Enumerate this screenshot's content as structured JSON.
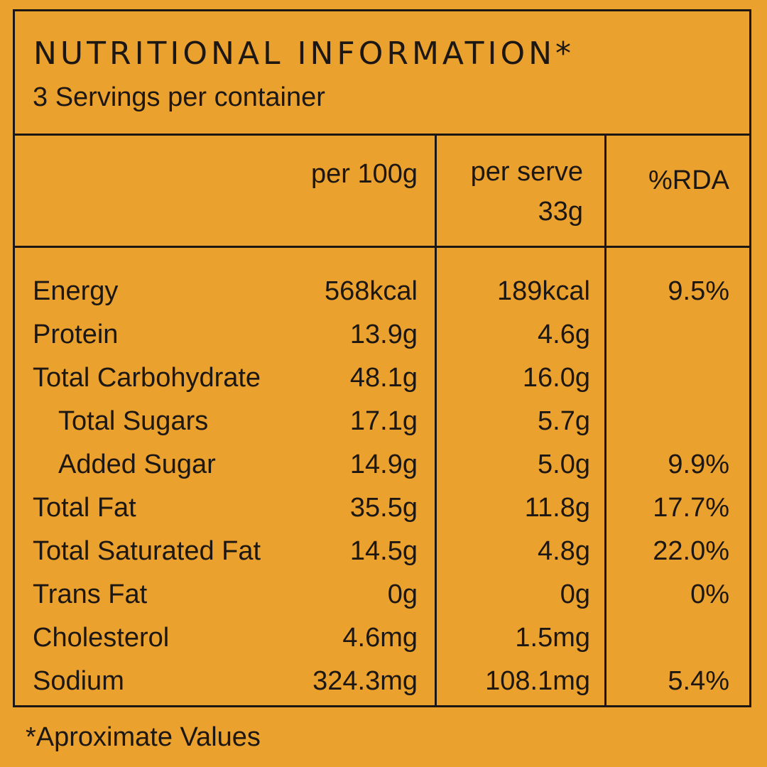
{
  "title": "NUTRITIONAL INFORMATION*",
  "subtitle": "3 Servings per container",
  "columns": {
    "per_100g": "per 100g",
    "per_serve_line1": "per serve",
    "per_serve_line2": "33g",
    "rda": "%RDA"
  },
  "rows": [
    {
      "name": "Energy",
      "per_100g": "568kcal",
      "per_serve": "189kcal",
      "rda": "9.5%"
    },
    {
      "name": "Protein",
      "per_100g": "13.9g",
      "per_serve": "4.6g",
      "rda": ""
    },
    {
      "name": "Total Carbohydrate",
      "per_100g": "48.1g",
      "per_serve": "16.0g",
      "rda": ""
    },
    {
      "name": "Total Sugars",
      "per_100g": "17.1g",
      "per_serve": "5.7g",
      "rda": ""
    },
    {
      "name": "Added Sugar",
      "per_100g": "14.9g",
      "per_serve": "5.0g",
      "rda": "9.9%"
    },
    {
      "name": "Total Fat",
      "per_100g": "35.5g",
      "per_serve": "11.8g",
      "rda": "17.7%"
    },
    {
      "name": "Total Saturated Fat",
      "per_100g": "14.5g",
      "per_serve": "4.8g",
      "rda": "22.0%"
    },
    {
      "name": "Trans Fat",
      "per_100g": "0g",
      "per_serve": "0g",
      "rda": "0%"
    },
    {
      "name": "Cholesterol",
      "per_100g": "4.6mg",
      "per_serve": "1.5mg",
      "rda": ""
    },
    {
      "name": "Sodium",
      "per_100g": "324.3mg",
      "per_serve": "108.1mg",
      "rda": "5.4%"
    }
  ],
  "footnote": "*Aproximate Values",
  "colors": {
    "background": "#eba12e",
    "ink": "#1c1712"
  }
}
